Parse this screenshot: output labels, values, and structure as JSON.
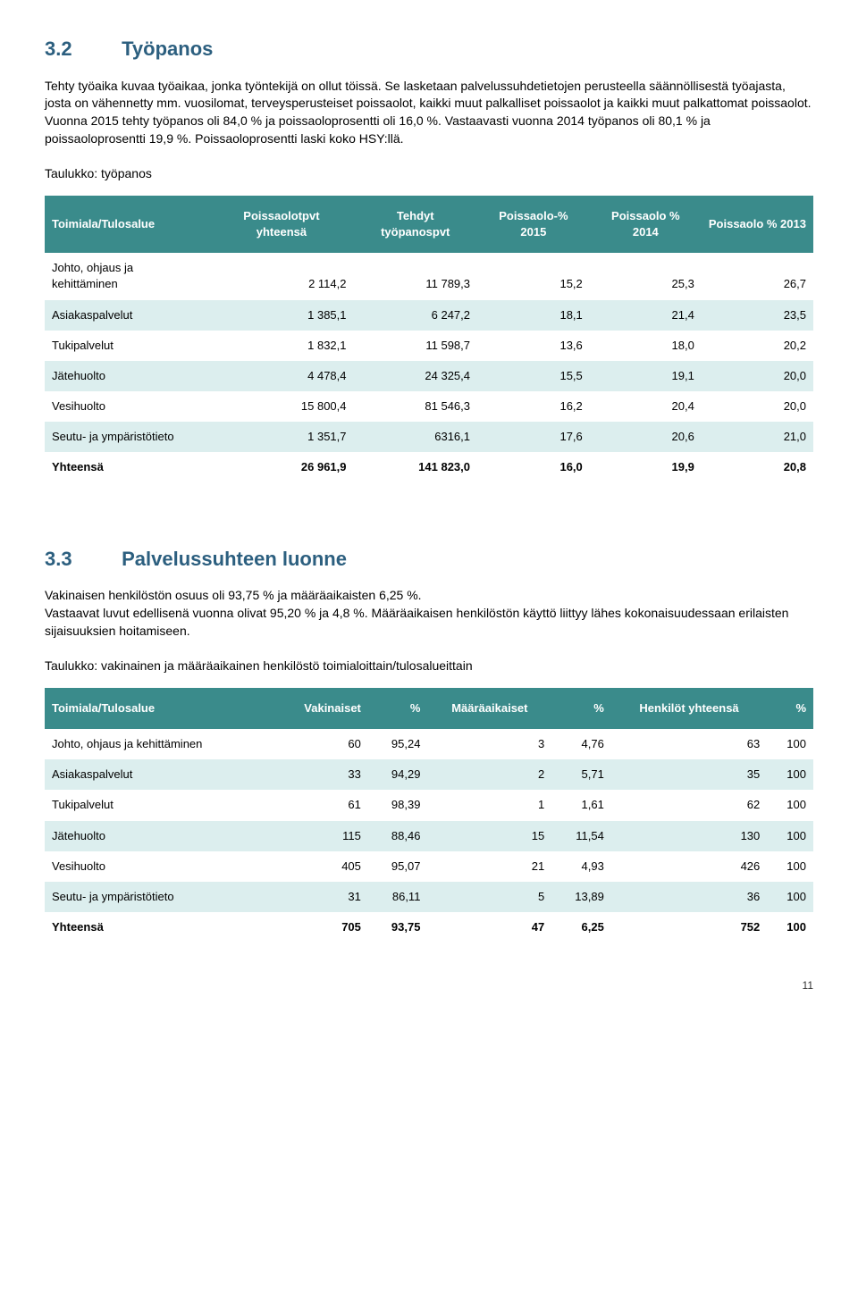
{
  "section32": {
    "number": "3.2",
    "title": "Työpanos",
    "paragraph": "Tehty työaika kuvaa työaikaa, jonka työntekijä on ollut töissä. Se lasketaan palvelussuhdetietojen perusteella säännöllisestä työajasta, josta on vähennetty mm. vuosilomat, terveysperusteiset poissaolot, kaikki muut palkalliset poissaolot ja kaikki muut palkattomat poissaolot. Vuonna 2015 tehty työpanos oli 84,0 % ja poissaoloprosentti oli 16,0 %. Vastaavasti vuonna 2014 työpanos oli 80,1 % ja poissaoloprosentti 19,9 %. Poissaoloprosentti laski koko HSY:llä.",
    "table_caption": "Taulukko: työpanos",
    "table": {
      "headers": [
        "Toimiala/Tulosalue",
        "Poissaolotpvt yhteensä",
        "Tehdyt työpanospvt",
        "Poissaolo-% 2015",
        "Poissaolo % 2014",
        "Poissaolo % 2013"
      ],
      "rows": [
        [
          "Johto, ohjaus ja kehittäminen",
          "2 114,2",
          "11 789,3",
          "15,2",
          "25,3",
          "26,7"
        ],
        [
          "Asiakaspalvelut",
          "1 385,1",
          "6 247,2",
          "18,1",
          "21,4",
          "23,5"
        ],
        [
          "Tukipalvelut",
          "1 832,1",
          "11 598,7",
          "13,6",
          "18,0",
          "20,2"
        ],
        [
          "Jätehuolto",
          "4 478,4",
          "24 325,4",
          "15,5",
          "19,1",
          "20,0"
        ],
        [
          "Vesihuolto",
          "15 800,4",
          "81 546,3",
          "16,2",
          "20,4",
          "20,0"
        ],
        [
          "Seutu- ja ympäristötieto",
          "1 351,7",
          "6316,1",
          "17,6",
          "20,6",
          "21,0"
        ],
        [
          "Yhteensä",
          "26 961,9",
          "141 823,0",
          "16,0",
          "19,9",
          "20,8"
        ]
      ],
      "header_bg": "#3a8b8b",
      "header_fg": "#ffffff",
      "row_alt_bg": "#dceeee",
      "row_bg": "#ffffff"
    }
  },
  "section33": {
    "number": "3.3",
    "title": "Palvelussuhteen luonne",
    "paragraph": "Vakinaisen henkilöstön osuus oli 93,75 % ja määräaikaisten 6,25 %.\nVastaavat luvut edellisenä vuonna olivat 95,20 % ja 4,8 %. Määräaikaisen henkilöstön käyttö liittyy lähes kokonaisuudessaan erilaisten sijaisuuksien hoitamiseen.",
    "table_caption": "Taulukko: vakinainen ja määräaikainen henkilöstö toimialoittain/tulosalueittain",
    "table": {
      "headers": [
        "Toimiala/Tulosalue",
        "Vakinaiset",
        "%",
        "Määräaikaiset",
        "%",
        "Henkilöt yhteensä",
        "%"
      ],
      "rows": [
        [
          "Johto, ohjaus ja kehittäminen",
          "60",
          "95,24",
          "3",
          "4,76",
          "63",
          "100"
        ],
        [
          "Asiakaspalvelut",
          "33",
          "94,29",
          "2",
          "5,71",
          "35",
          "100"
        ],
        [
          "Tukipalvelut",
          "61",
          "98,39",
          "1",
          "1,61",
          "62",
          "100"
        ],
        [
          "Jätehuolto",
          "115",
          "88,46",
          "15",
          "11,54",
          "130",
          "100"
        ],
        [
          "Vesihuolto",
          "405",
          "95,07",
          "21",
          "4,93",
          "426",
          "100"
        ],
        [
          "Seutu- ja ympäristötieto",
          "31",
          "86,11",
          "5",
          "13,89",
          "36",
          "100"
        ],
        [
          "Yhteensä",
          "705",
          "93,75",
          "47",
          "6,25",
          "752",
          "100"
        ]
      ]
    }
  },
  "colors": {
    "heading": "#2c5f7f",
    "table_header_bg": "#3a8b8b",
    "table_header_fg": "#ffffff",
    "table_alt_bg": "#dceeee"
  },
  "page_number": "11"
}
